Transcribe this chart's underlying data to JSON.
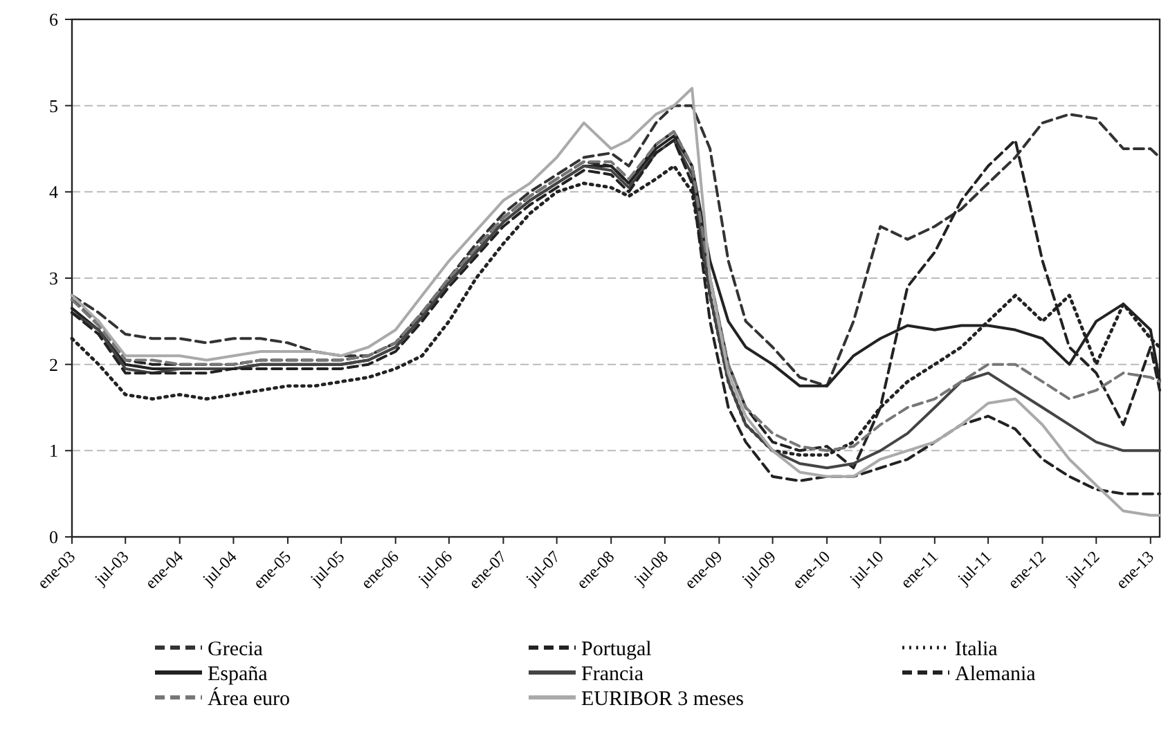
{
  "chart_data": {
    "type": "line",
    "x": [
      "2003-01",
      "2003-04",
      "2003-07",
      "2003-10",
      "2004-01",
      "2004-04",
      "2004-07",
      "2004-10",
      "2005-01",
      "2005-04",
      "2005-07",
      "2005-10",
      "2006-01",
      "2006-04",
      "2006-07",
      "2006-10",
      "2007-01",
      "2007-04",
      "2007-07",
      "2007-10",
      "2008-01",
      "2008-03",
      "2008-06",
      "2008-08",
      "2008-10",
      "2008-12",
      "2009-02",
      "2009-04",
      "2009-07",
      "2009-10",
      "2010-01",
      "2010-04",
      "2010-07",
      "2010-10",
      "2011-01",
      "2011-04",
      "2011-07",
      "2011-10",
      "2012-01",
      "2012-04",
      "2012-07",
      "2012-10",
      "2013-01",
      "2013-02"
    ],
    "series": [
      {
        "name": "Grecia",
        "color": "#333333",
        "line_style": "dashed",
        "values": [
          2.8,
          2.6,
          2.35,
          2.3,
          2.3,
          2.25,
          2.3,
          2.3,
          2.25,
          2.15,
          2.1,
          2.1,
          2.25,
          2.6,
          3.0,
          3.4,
          3.75,
          4.0,
          4.2,
          4.4,
          4.45,
          4.3,
          4.8,
          5.0,
          5.0,
          4.5,
          3.2,
          2.5,
          2.2,
          1.85,
          1.75,
          2.5,
          3.6,
          3.45,
          3.6,
          3.8,
          4.1,
          4.4,
          4.8,
          4.9,
          4.85,
          4.5,
          4.5,
          4.4
        ]
      },
      {
        "name": "Portugal",
        "color": "#222222",
        "line_style": "dashed",
        "values": [
          2.75,
          2.5,
          2.05,
          2.0,
          2.0,
          2.0,
          2.0,
          2.05,
          2.05,
          2.05,
          2.05,
          2.1,
          2.25,
          2.6,
          3.0,
          3.35,
          3.7,
          3.95,
          4.15,
          4.35,
          4.3,
          4.1,
          4.55,
          4.7,
          4.3,
          3.0,
          2.0,
          1.5,
          1.1,
          1.0,
          1.05,
          0.8,
          1.5,
          2.9,
          3.3,
          3.9,
          4.3,
          4.6,
          3.2,
          2.2,
          1.9,
          1.3,
          2.2,
          1.7
        ]
      },
      {
        "name": "Italia",
        "color": "#222222",
        "line_style": "dotted",
        "values": [
          2.3,
          2.0,
          1.65,
          1.6,
          1.65,
          1.6,
          1.65,
          1.7,
          1.75,
          1.75,
          1.8,
          1.85,
          1.95,
          2.1,
          2.5,
          3.0,
          3.4,
          3.75,
          4.0,
          4.1,
          4.05,
          3.95,
          4.15,
          4.3,
          4.0,
          2.8,
          1.8,
          1.3,
          1.0,
          0.95,
          0.95,
          1.1,
          1.5,
          1.8,
          2.0,
          2.2,
          2.5,
          2.8,
          2.5,
          2.8,
          2.0,
          2.7,
          2.3,
          2.2
        ]
      },
      {
        "name": "España",
        "color": "#222222",
        "line_style": "solid",
        "values": [
          2.65,
          2.4,
          2.0,
          1.95,
          1.95,
          1.95,
          1.95,
          2.0,
          2.0,
          2.0,
          2.0,
          2.05,
          2.2,
          2.55,
          2.95,
          3.3,
          3.65,
          3.9,
          4.1,
          4.3,
          4.3,
          4.1,
          4.5,
          4.65,
          4.3,
          3.2,
          2.5,
          2.2,
          2.0,
          1.75,
          1.75,
          2.1,
          2.3,
          2.45,
          2.4,
          2.45,
          2.45,
          2.4,
          2.3,
          2.0,
          2.5,
          2.7,
          2.4,
          1.8
        ]
      },
      {
        "name": "Francia",
        "color": "#444444",
        "line_style": "solid",
        "values": [
          2.6,
          2.4,
          1.95,
          1.9,
          1.95,
          1.95,
          1.95,
          2.0,
          2.0,
          2.0,
          2.0,
          2.05,
          2.2,
          2.55,
          2.95,
          3.3,
          3.65,
          3.9,
          4.1,
          4.3,
          4.25,
          4.05,
          4.45,
          4.6,
          4.2,
          2.8,
          1.8,
          1.3,
          1.0,
          0.85,
          0.8,
          0.85,
          1.0,
          1.2,
          1.5,
          1.8,
          1.9,
          1.7,
          1.5,
          1.3,
          1.1,
          1.0,
          1.0,
          1.0
        ]
      },
      {
        "name": "Alemania",
        "color": "#222222",
        "line_style": "dashed",
        "values": [
          2.6,
          2.35,
          1.9,
          1.9,
          1.9,
          1.9,
          1.95,
          1.95,
          1.95,
          1.95,
          1.95,
          2.0,
          2.15,
          2.5,
          2.9,
          3.25,
          3.6,
          3.85,
          4.05,
          4.25,
          4.2,
          4.0,
          4.45,
          4.6,
          4.1,
          2.5,
          1.5,
          1.1,
          0.7,
          0.65,
          0.7,
          0.7,
          0.8,
          0.9,
          1.1,
          1.3,
          1.4,
          1.25,
          0.9,
          0.7,
          0.55,
          0.5,
          0.5,
          0.5
        ]
      },
      {
        "name": "Área euro",
        "color": "#777777",
        "line_style": "dashed",
        "values": [
          2.75,
          2.45,
          2.05,
          2.05,
          2.0,
          2.0,
          2.0,
          2.05,
          2.05,
          2.05,
          2.05,
          2.1,
          2.25,
          2.6,
          3.0,
          3.35,
          3.7,
          3.95,
          4.15,
          4.35,
          4.35,
          4.15,
          4.55,
          4.7,
          4.3,
          3.0,
          2.0,
          1.5,
          1.2,
          1.05,
          1.0,
          1.05,
          1.3,
          1.5,
          1.6,
          1.8,
          2.0,
          2.0,
          1.8,
          1.6,
          1.7,
          1.9,
          1.85,
          1.8
        ]
      },
      {
        "name": "EURIBOR 3 meses",
        "color": "#aaaaaa",
        "line_style": "solid",
        "values": [
          2.8,
          2.5,
          2.1,
          2.1,
          2.1,
          2.05,
          2.1,
          2.15,
          2.15,
          2.15,
          2.1,
          2.2,
          2.4,
          2.8,
          3.2,
          3.55,
          3.9,
          4.1,
          4.4,
          4.8,
          4.5,
          4.6,
          4.9,
          5.0,
          5.2,
          3.0,
          1.9,
          1.4,
          1.0,
          0.75,
          0.7,
          0.7,
          0.9,
          1.0,
          1.1,
          1.3,
          1.55,
          1.6,
          1.3,
          0.9,
          0.6,
          0.3,
          0.25,
          0.25
        ]
      }
    ],
    "xlim": [
      "2003-01",
      "2013-02"
    ],
    "xticks": [
      {
        "value": "2003-01",
        "label": "ene-03"
      },
      {
        "value": "2003-07",
        "label": "jul-03"
      },
      {
        "value": "2004-01",
        "label": "ene-04"
      },
      {
        "value": "2004-07",
        "label": "jul-04"
      },
      {
        "value": "2005-01",
        "label": "ene-05"
      },
      {
        "value": "2005-07",
        "label": "jul-05"
      },
      {
        "value": "2006-01",
        "label": "ene-06"
      },
      {
        "value": "2006-07",
        "label": "jul-06"
      },
      {
        "value": "2007-01",
        "label": "ene-07"
      },
      {
        "value": "2007-07",
        "label": "jul-07"
      },
      {
        "value": "2008-01",
        "label": "ene-08"
      },
      {
        "value": "2008-07",
        "label": "jul-08"
      },
      {
        "value": "2009-01",
        "label": "ene-09"
      },
      {
        "value": "2009-07",
        "label": "jul-09"
      },
      {
        "value": "2010-01",
        "label": "ene-10"
      },
      {
        "value": "2010-07",
        "label": "jul-10"
      },
      {
        "value": "2011-01",
        "label": "ene-11"
      },
      {
        "value": "2011-07",
        "label": "jul-11"
      },
      {
        "value": "2012-01",
        "label": "ene-12"
      },
      {
        "value": "2012-07",
        "label": "jul-12"
      },
      {
        "value": "2013-01",
        "label": "ene-13"
      }
    ],
    "ylim": [
      0,
      6
    ],
    "yticks": [
      0,
      1,
      2,
      3,
      4,
      5,
      6
    ],
    "grid": "y",
    "legend": "bottom",
    "marker": "none"
  }
}
